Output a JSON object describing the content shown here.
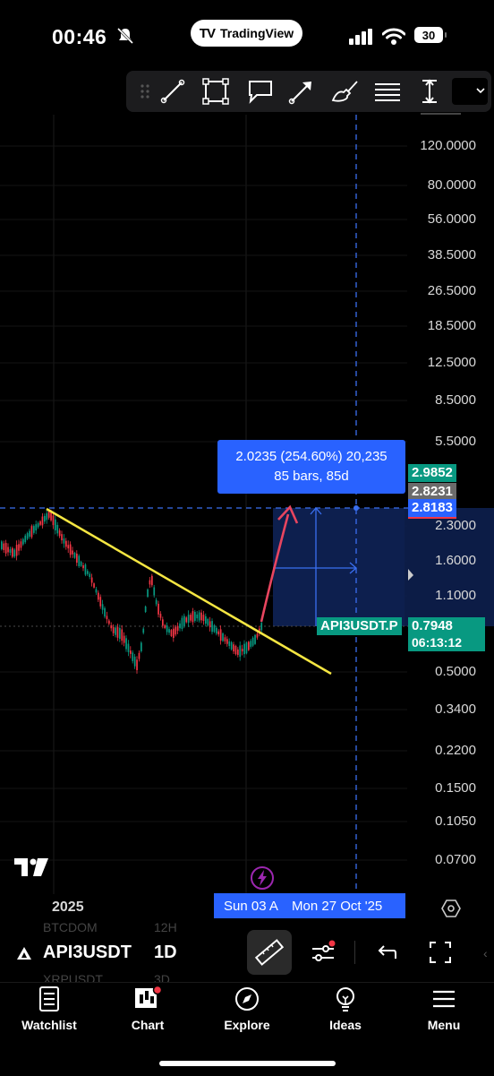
{
  "status_bar": {
    "time": "00:46",
    "app_pill": "TradingView",
    "battery": "30"
  },
  "measure_tooltip": {
    "line1": "2.0235 (254.60%) 20,235",
    "line2": "85 bars, 85d"
  },
  "price_axis": {
    "ticks": [
      "120.0000",
      "80.0000",
      "56.0000",
      "38.5000",
      "26.5000",
      "18.5000",
      "12.5000",
      "8.5000",
      "5.5000",
      "2.3000",
      "1.6000",
      "1.1000",
      "0.5000",
      "0.3400",
      "0.2200",
      "0.1500",
      "0.1050",
      "0.0700"
    ],
    "badge_green_top": "2.9852",
    "badge_gray": "2.8231",
    "badge_blue": "2.8183",
    "badge_last": "0.7948",
    "badge_countdown": "06:13:12",
    "symbol_label": "API3USDT.P"
  },
  "time_axis": {
    "year_label": "2025",
    "range_start": "Sun 03 A",
    "range_end": "Mon 27 Oct '25"
  },
  "bottom_toolbar": {
    "symbol": "API3USDT",
    "ghost_prev": "BTCDOM",
    "ghost_prev_tf": "12H",
    "ghost_next": "XRPUSDT",
    "ghost_next_tf": "3D",
    "timeframe": "1D"
  },
  "nav": {
    "watchlist": "Watchlist",
    "chart": "Chart",
    "explore": "Explore",
    "ideas": "Ideas",
    "menu": "Menu"
  },
  "colors": {
    "accent_blue": "#2962ff",
    "trend_yellow": "#f5e642",
    "bull_green": "#089981",
    "bear_red": "#f23645"
  }
}
